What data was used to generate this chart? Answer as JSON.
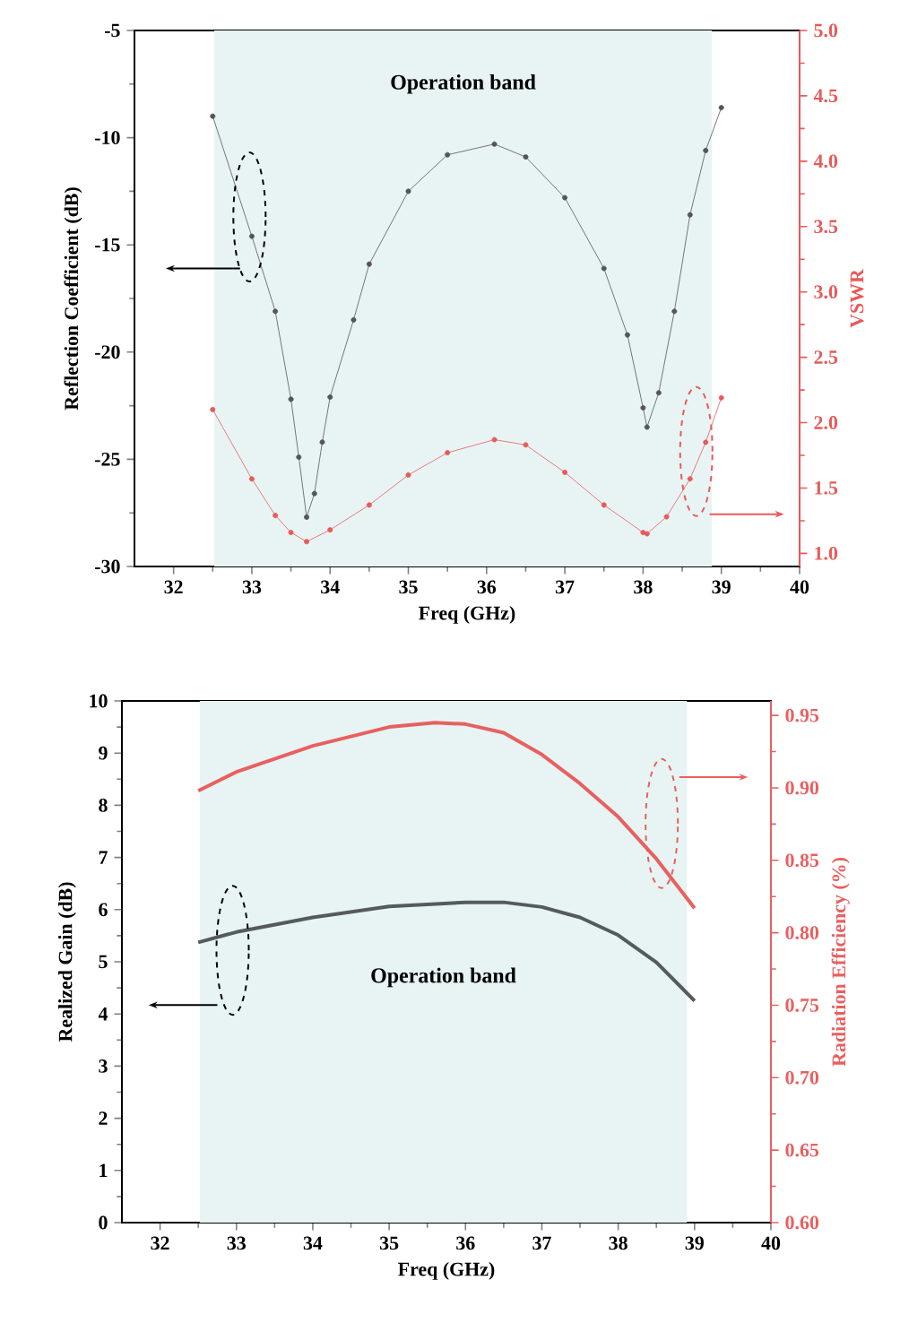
{
  "chart_data": [
    {
      "type": "line",
      "xlabel": "Freq (GHz)",
      "ylabel": "Reflection Coefficient (dB)",
      "y2label": "VSWR",
      "xlim": [
        31.5,
        40
      ],
      "xticks": [
        32,
        33,
        34,
        35,
        36,
        37,
        38,
        39,
        40
      ],
      "ylim": [
        -30,
        -5
      ],
      "yticks": [
        -30,
        -25,
        -20,
        -15,
        -10,
        -5
      ],
      "y2lim": [
        0.9,
        5.0
      ],
      "y2ticks": [
        {
          "value": 1,
          "label": "1.0"
        },
        {
          "value": 1.5,
          "label": "1.5"
        },
        {
          "value": 2,
          "label": "2.0"
        },
        {
          "value": 2.5,
          "label": "2.5"
        },
        {
          "value": 3,
          "label": "3.0"
        },
        {
          "value": 3.5,
          "label": "3.5"
        },
        {
          "value": 4,
          "label": "4.0"
        },
        {
          "value": 4.5,
          "label": "4.5"
        },
        {
          "value": 5,
          "label": "5.0"
        }
      ],
      "marker": "circle",
      "grid": false,
      "bands": [
        {
          "axis": "x",
          "from": 32.52,
          "to": 38.88,
          "label": "Operation band",
          "color": "#e8f4f4"
        }
      ],
      "series": [
        {
          "color": "#555555",
          "x": [
            32.5,
            33.0,
            33.3,
            33.5,
            33.6,
            33.7,
            33.8,
            33.9,
            34.0,
            34.3,
            34.5,
            35.0,
            35.5,
            36.1,
            36.5,
            37.0,
            37.5,
            37.8,
            38.0,
            38.05,
            38.2,
            38.4,
            38.6,
            38.8,
            39.0
          ],
          "values": [
            -9.0,
            -14.6,
            -18.1,
            -22.2,
            -24.9,
            -27.7,
            -26.6,
            -24.2,
            -22.1,
            -18.5,
            -15.9,
            -12.5,
            -10.8,
            -10.3,
            -10.9,
            -12.8,
            -16.1,
            -19.2,
            -22.6,
            -23.5,
            -21.9,
            -18.1,
            -13.6,
            -10.6,
            -8.6
          ]
        },
        {
          "color": "#e85a5a",
          "axis": "y2",
          "x": [
            32.5,
            33.0,
            33.3,
            33.5,
            33.7,
            34.0,
            34.5,
            35.0,
            35.5,
            36.1,
            36.5,
            37.0,
            37.5,
            38.0,
            38.05,
            38.3,
            38.6,
            38.8,
            39.0
          ],
          "values": [
            2.1,
            1.57,
            1.29,
            1.16,
            1.09,
            1.18,
            1.37,
            1.6,
            1.77,
            1.87,
            1.83,
            1.62,
            1.37,
            1.16,
            1.15,
            1.28,
            1.57,
            1.85,
            2.19
          ]
        }
      ]
    },
    {
      "type": "line",
      "xlabel": "Freq (GHz)",
      "ylabel": "Realized Gain (dB)",
      "y2label": "Radiation Efficiency (%)",
      "xlim": [
        31.5,
        40
      ],
      "xticks": [
        32,
        33,
        34,
        35,
        36,
        37,
        38,
        39,
        40
      ],
      "ylim": [
        0,
        10
      ],
      "yticks": [
        0,
        1,
        2,
        3,
        4,
        5,
        6,
        7,
        8,
        9,
        10
      ],
      "y2lim": [
        0.6,
        0.96
      ],
      "y2ticks": [
        {
          "value": 0.6,
          "label": "0.60"
        },
        {
          "value": 0.65,
          "label": "0.65"
        },
        {
          "value": 0.7,
          "label": "0.70"
        },
        {
          "value": 0.75,
          "label": "0.75"
        },
        {
          "value": 0.8,
          "label": "0.80"
        },
        {
          "value": 0.85,
          "label": "0.85"
        },
        {
          "value": 0.9,
          "label": "0.90"
        },
        {
          "value": 0.95,
          "label": "0.95"
        }
      ],
      "grid": false,
      "bands": [
        {
          "axis": "x",
          "from": 32.52,
          "to": 38.9,
          "label": "Operation band",
          "color": "#e8f4f4"
        }
      ],
      "series": [
        {
          "color": "#555a5a",
          "x": [
            32.5,
            33.0,
            34.0,
            35.0,
            36.0,
            36.5,
            37.0,
            37.5,
            38.0,
            38.5,
            39.0
          ],
          "values": [
            5.37,
            5.57,
            5.85,
            6.06,
            6.14,
            6.14,
            6.05,
            5.85,
            5.51,
            4.99,
            4.25
          ]
        },
        {
          "color": "#e86060",
          "axis": "y2",
          "x": [
            32.5,
            33.0,
            34.0,
            35.0,
            35.6,
            36.0,
            36.5,
            37.0,
            37.5,
            38.0,
            38.5,
            39.0
          ],
          "values": [
            0.898,
            0.911,
            0.929,
            0.942,
            0.945,
            0.944,
            0.938,
            0.923,
            0.903,
            0.88,
            0.851,
            0.817
          ]
        }
      ]
    }
  ]
}
